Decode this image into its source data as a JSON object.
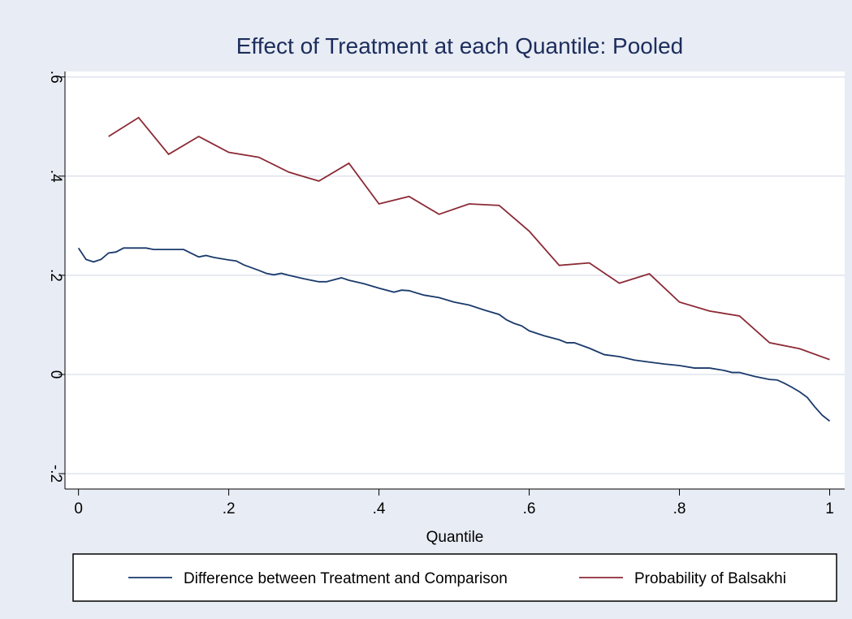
{
  "chart_data": {
    "type": "line",
    "title": "Effect of Treatment at each Quantile: Pooled",
    "x_label": "Quantile",
    "xlim": [
      -0.018,
      1.02
    ],
    "ylim": [
      -0.231,
      0.611
    ],
    "xticks": [
      0,
      {
        "value": 0.2,
        "label": ".2"
      },
      {
        "value": 0.4,
        "label": ".4"
      },
      {
        "value": 0.6,
        "label": ".6"
      },
      {
        "value": 0.8,
        "label": ".8"
      },
      1
    ],
    "yticks": [
      {
        "value": -0.2,
        "label": "-.2"
      },
      0,
      {
        "value": 0.2,
        "label": ".2"
      },
      {
        "value": 0.4,
        "label": ".4"
      },
      {
        "value": 0.6,
        "label": ".6"
      }
    ],
    "grid": true,
    "legend": "bottom",
    "series": [
      {
        "name": "Difference between Treatment and Comparison",
        "color": "#1a3a6b",
        "x": [
          0,
          0.01,
          0.02,
          0.03,
          0.04,
          0.05,
          0.06,
          0.08,
          0.09,
          0.1,
          0.12,
          0.14,
          0.16,
          0.17,
          0.18,
          0.2,
          0.21,
          0.22,
          0.24,
          0.25,
          0.26,
          0.27,
          0.28,
          0.3,
          0.32,
          0.33,
          0.35,
          0.36,
          0.38,
          0.4,
          0.42,
          0.43,
          0.44,
          0.46,
          0.48,
          0.5,
          0.52,
          0.54,
          0.56,
          0.57,
          0.58,
          0.59,
          0.6,
          0.62,
          0.64,
          0.65,
          0.66,
          0.68,
          0.7,
          0.72,
          0.74,
          0.76,
          0.78,
          0.8,
          0.82,
          0.84,
          0.86,
          0.87,
          0.88,
          0.9,
          0.92,
          0.93,
          0.94,
          0.95,
          0.96,
          0.97,
          0.98,
          0.99,
          1
        ],
        "values": [
          0.255,
          0.232,
          0.227,
          0.232,
          0.245,
          0.247,
          0.255,
          0.255,
          0.255,
          0.252,
          0.252,
          0.252,
          0.237,
          0.24,
          0.236,
          0.231,
          0.229,
          0.221,
          0.21,
          0.204,
          0.201,
          0.204,
          0.2,
          0.193,
          0.187,
          0.187,
          0.195,
          0.19,
          0.183,
          0.174,
          0.166,
          0.17,
          0.169,
          0.16,
          0.155,
          0.146,
          0.14,
          0.13,
          0.121,
          0.11,
          0.103,
          0.098,
          0.088,
          0.078,
          0.07,
          0.064,
          0.064,
          0.053,
          0.04,
          0.036,
          0.029,
          0.025,
          0.021,
          0.018,
          0.013,
          0.013,
          0.008,
          0.004,
          0.004,
          -0.004,
          -0.01,
          -0.011,
          -0.018,
          -0.026,
          -0.035,
          -0.046,
          -0.065,
          -0.082,
          -0.094
        ]
      },
      {
        "name": "Probability of Balsakhi",
        "color": "#8b2a35",
        "x": [
          0.04,
          0.08,
          0.12,
          0.16,
          0.2,
          0.24,
          0.28,
          0.32,
          0.36,
          0.4,
          0.44,
          0.48,
          0.52,
          0.56,
          0.6,
          0.64,
          0.68,
          0.72,
          0.76,
          0.8,
          0.84,
          0.88,
          0.92,
          0.96,
          1
        ],
        "values": [
          0.48,
          0.518,
          0.444,
          0.48,
          0.448,
          0.438,
          0.408,
          0.39,
          0.426,
          0.344,
          0.359,
          0.323,
          0.344,
          0.341,
          0.289,
          0.22,
          0.225,
          0.184,
          0.203,
          0.146,
          0.128,
          0.118,
          0.064,
          0.052,
          0.03
        ]
      }
    ]
  }
}
